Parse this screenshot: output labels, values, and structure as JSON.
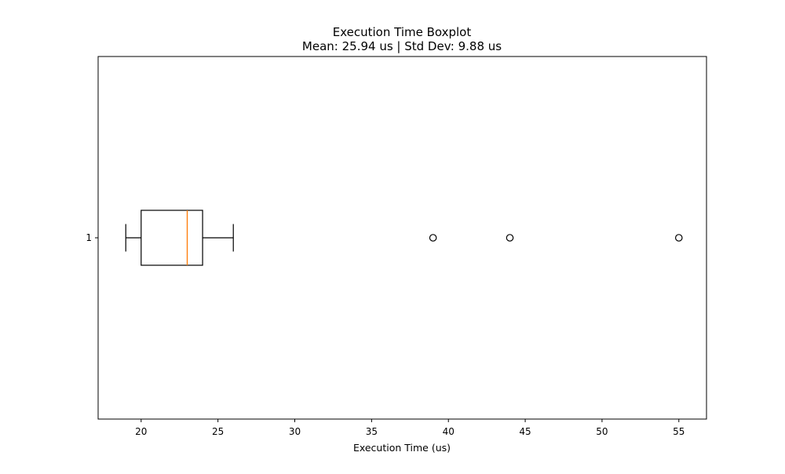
{
  "chart_data": {
    "type": "boxplot",
    "orientation": "horizontal",
    "title": "Execution Time Boxplot",
    "subtitle": "Mean: 25.94 us | Std Dev: 9.88 us",
    "xlabel": "Execution Time (us)",
    "ylabel": "",
    "xlim": [
      17.2,
      56.8
    ],
    "x_ticks": [
      20,
      25,
      30,
      35,
      40,
      45,
      50,
      55
    ],
    "y_ticks": [
      "1"
    ],
    "grid": false,
    "colors": {
      "box": "#000000",
      "median": "#ff7f0e",
      "whisker": "#000000",
      "flier": "#000000"
    },
    "boxes": [
      {
        "category": "1",
        "whisker_low": 19,
        "q1": 20,
        "median": 23,
        "q3": 24,
        "whisker_high": 26,
        "outliers": [
          39,
          44,
          55
        ]
      }
    ]
  }
}
